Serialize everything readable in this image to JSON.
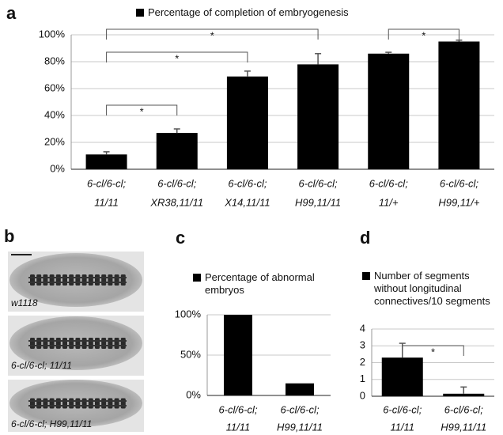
{
  "chart_data": [
    {
      "type": "bar",
      "panel_label": "a",
      "categories": [
        [
          "6-cl/6-cl;",
          "11/11"
        ],
        [
          "6-cl/6-cl;",
          "XR38,11/11"
        ],
        [
          "6-cl/6-cl;",
          "X14,11/11"
        ],
        [
          "6-cl/6-cl;",
          "H99,11/11"
        ],
        [
          "6-cl/6-cl;",
          "11/+"
        ],
        [
          "6-cl/6-cl;",
          "H99,11/+"
        ]
      ],
      "series": [
        {
          "name": "Percentage of completion of embryogenesis",
          "color": "#000000",
          "values": [
            11,
            27,
            69,
            78,
            86,
            95
          ],
          "errors": [
            2,
            3,
            4,
            8,
            1,
            1
          ]
        }
      ],
      "ylim": [
        0,
        100
      ],
      "yticks": [
        {
          "value": 0,
          "label": "0%"
        },
        {
          "value": 20,
          "label": "20%"
        },
        {
          "value": 40,
          "label": "40%"
        },
        {
          "value": 60,
          "label": "60%"
        },
        {
          "value": 80,
          "label": "80%"
        },
        {
          "value": 100,
          "label": "100%"
        }
      ],
      "grid": true,
      "significance": [
        {
          "from": 0,
          "to": 1,
          "label": "*"
        },
        {
          "from": 0,
          "to": 2,
          "label": "*"
        },
        {
          "from": 0,
          "to": 3,
          "label": "*"
        },
        {
          "from": 4,
          "to": 5,
          "label": "*"
        }
      ]
    },
    {
      "type": "bar",
      "panel_label": "c",
      "categories": [
        [
          "6-cl/6-cl;",
          "11/11"
        ],
        [
          "6-cl/6-cl;",
          "H99,11/11"
        ]
      ],
      "series": [
        {
          "name": "Percentage of abnormal embryos",
          "color": "#000000",
          "values": [
            100,
            15
          ]
        }
      ],
      "ylim": [
        0,
        100
      ],
      "yticks": [
        {
          "value": 0,
          "label": "0%"
        },
        {
          "value": 50,
          "label": "50%"
        },
        {
          "value": 100,
          "label": "100%"
        }
      ],
      "grid": true,
      "significance": []
    },
    {
      "type": "bar",
      "panel_label": "d",
      "categories": [
        [
          "6-cl/6-cl;",
          "11/11"
        ],
        [
          "6-cl/6-cl;",
          "H99,11/11"
        ]
      ],
      "series": [
        {
          "name": "Number of segments without longitudinal connectives/10 segments",
          "color": "#000000",
          "values": [
            2.3,
            0.15
          ],
          "errors": [
            0.85,
            0.4
          ]
        }
      ],
      "ylim": [
        0,
        4
      ],
      "yticks": [
        0,
        1,
        2,
        3,
        4
      ],
      "grid": true,
      "significance": [
        {
          "from": 0,
          "to": 1,
          "label": "*"
        }
      ]
    }
  ],
  "images": {
    "panel_label": "b",
    "captions": [
      "w1118",
      "6-cl/6-cl; 11/11",
      "6-cl/6-cl; H99,11/11"
    ]
  }
}
